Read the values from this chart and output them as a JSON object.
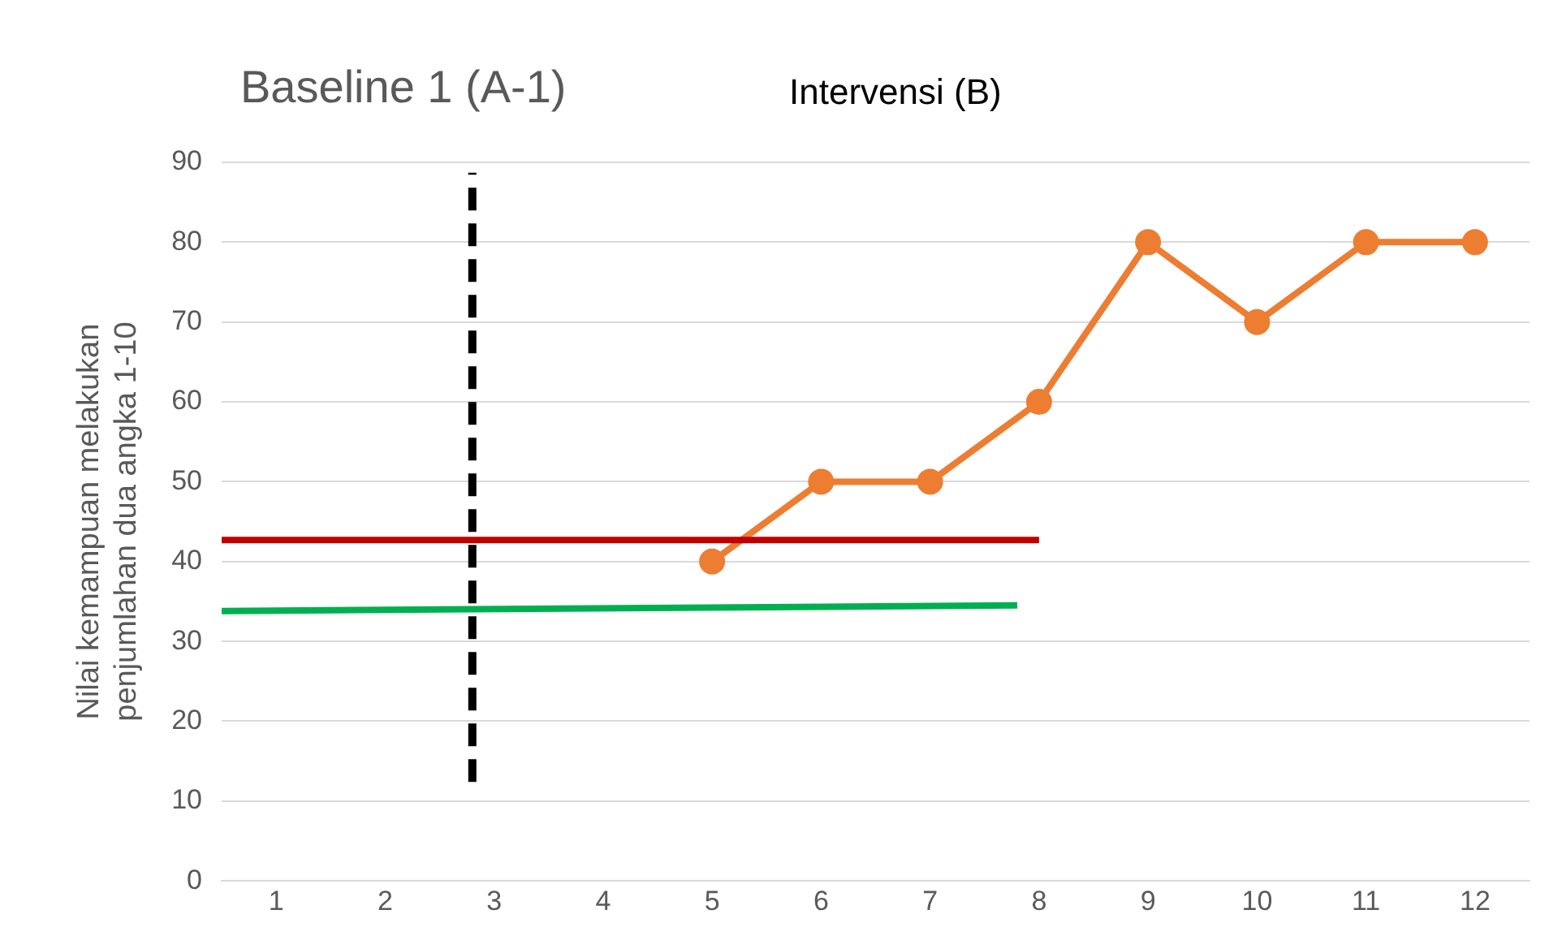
{
  "chart_data": {
    "type": "line",
    "ylabel": "Nilai kemampuan melakukan penjumlahan dua angka 1-10",
    "annotations": [
      "Baseline 1 (A-1)",
      "Intervensi (B)"
    ],
    "xlim": [
      0.5,
      12.5
    ],
    "xticks": [
      1,
      2,
      3,
      4,
      5,
      6,
      7,
      8,
      9,
      10,
      11,
      12
    ],
    "ylim": [
      0,
      90
    ],
    "yticks": [
      0,
      10,
      20,
      30,
      40,
      50,
      60,
      70,
      80,
      90
    ],
    "grid": "y",
    "legend": false,
    "series": [
      {
        "color": "#c00000",
        "x": [
          0.5,
          8
        ],
        "values": [
          42.7,
          42.7
        ],
        "marker": "none",
        "line_style": "solid"
      },
      {
        "color": "#00b050",
        "x": [
          0.5,
          7.8
        ],
        "values": [
          33.8,
          34.5
        ],
        "marker": "none",
        "line_style": "solid"
      },
      {
        "color": "#000000",
        "x": [
          2.8,
          2.8
        ],
        "values": [
          12.4,
          88.7
        ],
        "marker": "none",
        "line_style": "dashed"
      },
      {
        "color": "#ed7d31",
        "x": [
          5,
          6,
          7,
          8,
          9,
          10,
          11,
          12
        ],
        "values": [
          40,
          50,
          50,
          60,
          80,
          70,
          80,
          80
        ],
        "marker": "circle",
        "line_style": "solid"
      }
    ]
  }
}
